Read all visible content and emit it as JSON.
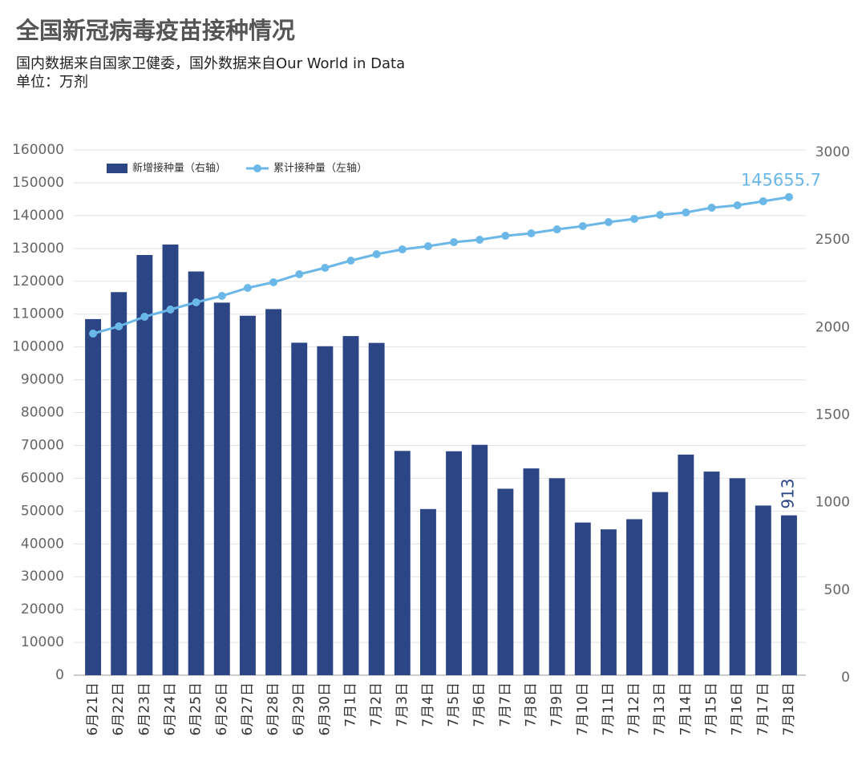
{
  "chart_data": {
    "type": "bar-line",
    "title": "全国新冠病毒疫苗接种情况",
    "subtitle": "国内数据来自国家卫健委，国外数据来自Our World in Data",
    "unit": "单位：万剂",
    "categories": [
      "6月21日",
      "6月22日",
      "6月23日",
      "6月24日",
      "6月25日",
      "6月26日",
      "6月27日",
      "6月28日",
      "6月29日",
      "6月30日",
      "7月1日",
      "7月2日",
      "7月3日",
      "7月4日",
      "7月5日",
      "7月6日",
      "7月7日",
      "7月8日",
      "7月9日",
      "7月10日",
      "7月11日",
      "7月12日",
      "7月13日",
      "7月14日",
      "7月15日",
      "7月16日",
      "7月17日",
      "7月18日"
    ],
    "series": [
      {
        "name": "新增接种量（右轴）",
        "type": "bar",
        "axis": "y2",
        "color": "#2c4585",
        "values": [
          2034,
          2188,
          2400,
          2460,
          2306,
          2128,
          2053,
          2091,
          1899,
          1879,
          1937,
          1898,
          1281,
          949,
          1279,
          1316,
          1065,
          1181,
          1125,
          872,
          833,
          891,
          1046,
          1260,
          1163,
          1125,
          969,
          913
        ]
      },
      {
        "name": "累计接种量（左轴）",
        "type": "line",
        "axis": "y",
        "color": "#6bb8e8",
        "values": [
          104060,
          106260,
          109190,
          111390,
          113590,
          115540,
          117985,
          119695,
          122140,
          124090,
          126290,
          128240,
          129710,
          130690,
          131910,
          132640,
          133860,
          134590,
          135810,
          136790,
          138010,
          138990,
          140210,
          140940,
          142410,
          143140,
          144360,
          145655.7
        ]
      }
    ],
    "ylim": [
      0,
      160000
    ],
    "yticks": [
      0,
      10000,
      20000,
      30000,
      40000,
      50000,
      60000,
      70000,
      80000,
      90000,
      100000,
      110000,
      120000,
      130000,
      140000,
      150000,
      160000
    ],
    "y2lim": [
      0,
      3000
    ],
    "y2ticks": [
      0,
      500,
      1000,
      1500,
      2000,
      2500,
      3000
    ],
    "grid": true,
    "legend": "top-left"
  }
}
